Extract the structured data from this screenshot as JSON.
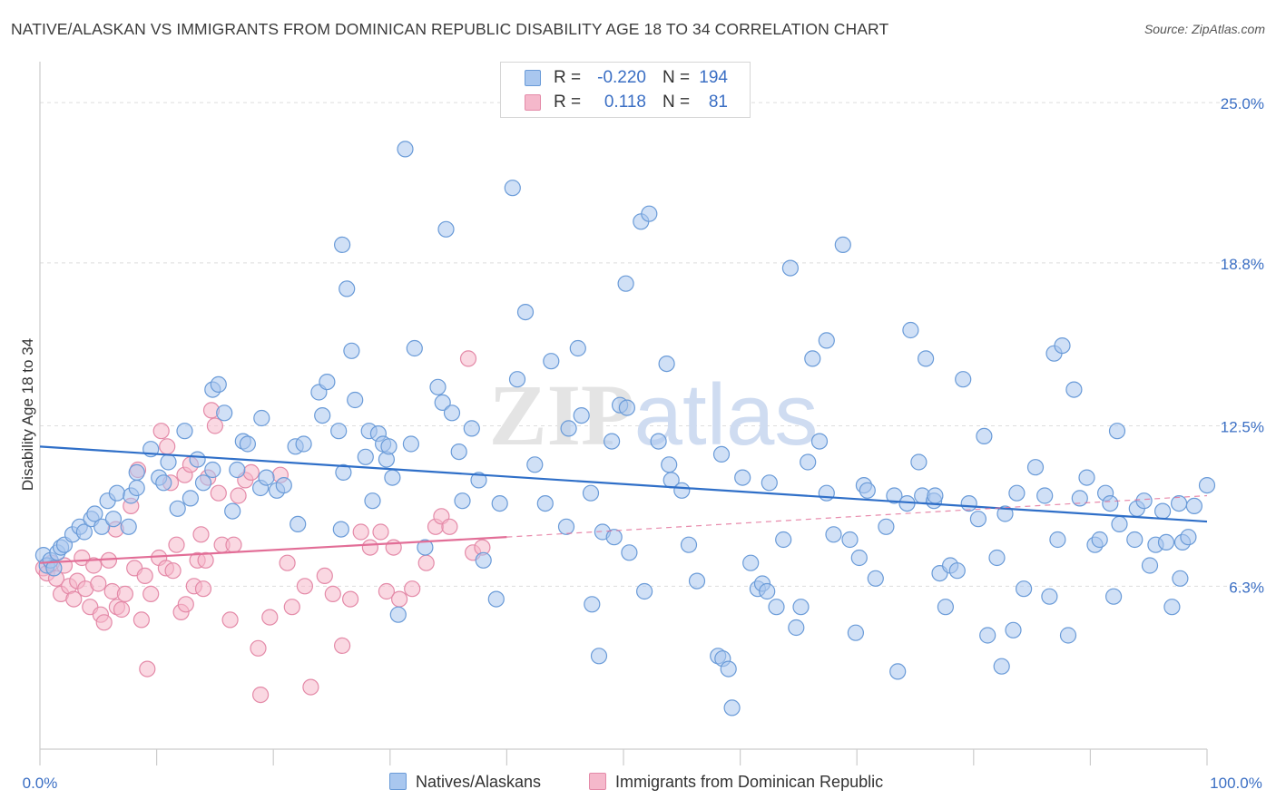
{
  "title": "NATIVE/ALASKAN VS IMMIGRANTS FROM DOMINICAN REPUBLIC DISABILITY AGE 18 TO 34 CORRELATION CHART",
  "source": "Source: ZipAtlas.com",
  "watermark": "ZIPatlas",
  "colors": {
    "blue_fill": "#a9c7ef",
    "blue_stroke": "#6a9bd8",
    "blue_line": "#2f6fc8",
    "pink_fill": "#f5b8cb",
    "pink_stroke": "#e48aa8",
    "pink_line": "#e26e97",
    "tick_label": "#3b6fc4",
    "grid": "#dddddd"
  },
  "stats": [
    {
      "r_label": "R =",
      "r_value": "-0.220",
      "n_label": "N =",
      "n_value": "194"
    },
    {
      "r_label": "R =",
      "r_value": "0.118",
      "n_label": "N =",
      "n_value": "81"
    }
  ],
  "chart_data": {
    "type": "scatter",
    "ylabel": "Disability Age 18 to 34",
    "xlabel": "",
    "xlim": [
      0,
      100
    ],
    "ylim": [
      0,
      26.3
    ],
    "x_tick_labels": [
      "0.0%",
      "100.0%"
    ],
    "y_ticks": [
      6.3,
      12.5,
      18.8,
      25.0
    ],
    "y_tick_labels": [
      "6.3%",
      "12.5%",
      "18.8%",
      "25.0%"
    ],
    "grid": true,
    "legend_position": "bottom",
    "series": [
      {
        "name": "Natives/Alaskans",
        "color": "blue",
        "trend": {
          "x": [
            0,
            100
          ],
          "y": [
            11.7,
            8.8
          ],
          "style": "solid"
        },
        "points": [
          [
            0.3,
            7.5
          ],
          [
            0.6,
            7.1
          ],
          [
            0.9,
            7.3
          ],
          [
            1.2,
            7.0
          ],
          [
            1.5,
            7.6
          ],
          [
            1.8,
            7.8
          ],
          [
            2.1,
            7.9
          ],
          [
            2.8,
            8.3
          ],
          [
            3.4,
            8.6
          ],
          [
            3.8,
            8.4
          ],
          [
            4.4,
            8.9
          ],
          [
            4.7,
            9.1
          ],
          [
            5.3,
            8.6
          ],
          [
            5.8,
            9.6
          ],
          [
            6.3,
            8.9
          ],
          [
            6.6,
            9.9
          ],
          [
            7.6,
            8.6
          ],
          [
            7.8,
            9.8
          ],
          [
            8.3,
            10.1
          ],
          [
            8.3,
            10.7
          ],
          [
            9.5,
            11.6
          ],
          [
            10.2,
            10.5
          ],
          [
            10.6,
            10.3
          ],
          [
            11.0,
            11.1
          ],
          [
            11.8,
            9.3
          ],
          [
            12.4,
            12.3
          ],
          [
            12.9,
            9.7
          ],
          [
            13.5,
            11.2
          ],
          [
            14.0,
            10.3
          ],
          [
            14.8,
            10.8
          ],
          [
            14.8,
            13.9
          ],
          [
            15.3,
            14.1
          ],
          [
            15.8,
            13.0
          ],
          [
            16.5,
            9.2
          ],
          [
            16.9,
            10.8
          ],
          [
            17.4,
            11.9
          ],
          [
            17.8,
            11.8
          ],
          [
            18.9,
            10.1
          ],
          [
            19.0,
            12.8
          ],
          [
            19.4,
            10.5
          ],
          [
            20.3,
            10.0
          ],
          [
            20.9,
            10.2
          ],
          [
            21.9,
            11.7
          ],
          [
            22.1,
            8.7
          ],
          [
            22.6,
            11.8
          ],
          [
            23.9,
            13.8
          ],
          [
            24.2,
            12.9
          ],
          [
            24.6,
            14.2
          ],
          [
            25.6,
            12.3
          ],
          [
            25.8,
            8.5
          ],
          [
            26.0,
            10.7
          ],
          [
            25.9,
            19.5
          ],
          [
            26.3,
            17.8
          ],
          [
            26.7,
            15.4
          ],
          [
            27.0,
            13.5
          ],
          [
            27.9,
            11.3
          ],
          [
            28.2,
            12.3
          ],
          [
            28.5,
            9.6
          ],
          [
            29.0,
            12.2
          ],
          [
            29.4,
            11.8
          ],
          [
            29.7,
            11.2
          ],
          [
            29.9,
            11.7
          ],
          [
            30.2,
            10.5
          ],
          [
            30.7,
            5.2
          ],
          [
            31.3,
            23.2
          ],
          [
            31.8,
            11.8
          ],
          [
            32.1,
            15.5
          ],
          [
            33.0,
            7.8
          ],
          [
            34.1,
            14.0
          ],
          [
            34.5,
            13.4
          ],
          [
            34.8,
            20.1
          ],
          [
            35.3,
            13.0
          ],
          [
            35.9,
            11.5
          ],
          [
            36.2,
            9.6
          ],
          [
            37.0,
            12.4
          ],
          [
            37.6,
            10.4
          ],
          [
            38.0,
            7.3
          ],
          [
            39.1,
            5.8
          ],
          [
            39.4,
            9.5
          ],
          [
            40.5,
            21.7
          ],
          [
            40.9,
            14.3
          ],
          [
            41.6,
            16.9
          ],
          [
            42.4,
            11.0
          ],
          [
            43.3,
            9.5
          ],
          [
            43.8,
            15.0
          ],
          [
            45.1,
            8.6
          ],
          [
            45.3,
            12.4
          ],
          [
            46.1,
            15.5
          ],
          [
            46.4,
            12.9
          ],
          [
            47.2,
            9.9
          ],
          [
            47.3,
            5.6
          ],
          [
            47.9,
            3.6
          ],
          [
            48.2,
            8.4
          ],
          [
            49.0,
            11.9
          ],
          [
            49.2,
            8.2
          ],
          [
            49.7,
            13.3
          ],
          [
            50.3,
            13.2
          ],
          [
            50.2,
            18.0
          ],
          [
            50.5,
            7.6
          ],
          [
            51.8,
            6.1
          ],
          [
            51.5,
            20.4
          ],
          [
            52.2,
            20.7
          ],
          [
            53.0,
            11.9
          ],
          [
            53.9,
            11.0
          ],
          [
            53.7,
            14.9
          ],
          [
            54.1,
            10.4
          ],
          [
            55.0,
            10.0
          ],
          [
            55.6,
            7.9
          ],
          [
            56.3,
            6.5
          ],
          [
            58.1,
            3.6
          ],
          [
            58.4,
            11.4
          ],
          [
            58.5,
            3.5
          ],
          [
            59.0,
            3.1
          ],
          [
            59.3,
            1.6
          ],
          [
            60.2,
            10.5
          ],
          [
            60.9,
            7.2
          ],
          [
            61.5,
            6.2
          ],
          [
            61.9,
            6.4
          ],
          [
            62.3,
            6.1
          ],
          [
            62.5,
            10.3
          ],
          [
            63.1,
            5.5
          ],
          [
            63.7,
            8.1
          ],
          [
            64.3,
            18.6
          ],
          [
            64.8,
            4.7
          ],
          [
            65.2,
            5.5
          ],
          [
            65.8,
            11.1
          ],
          [
            66.2,
            15.1
          ],
          [
            66.8,
            11.9
          ],
          [
            67.4,
            15.8
          ],
          [
            67.4,
            9.9
          ],
          [
            68.0,
            8.3
          ],
          [
            68.8,
            19.5
          ],
          [
            69.4,
            8.1
          ],
          [
            69.9,
            4.5
          ],
          [
            70.2,
            7.4
          ],
          [
            70.6,
            10.2
          ],
          [
            70.9,
            10.0
          ],
          [
            71.6,
            6.6
          ],
          [
            72.5,
            8.6
          ],
          [
            73.2,
            9.8
          ],
          [
            73.5,
            3.0
          ],
          [
            74.3,
            9.5
          ],
          [
            74.6,
            16.2
          ],
          [
            75.3,
            11.1
          ],
          [
            75.6,
            9.8
          ],
          [
            75.9,
            15.1
          ],
          [
            76.6,
            9.6
          ],
          [
            76.7,
            9.8
          ],
          [
            77.1,
            6.8
          ],
          [
            77.6,
            5.5
          ],
          [
            78.0,
            7.1
          ],
          [
            78.6,
            6.9
          ],
          [
            79.1,
            14.3
          ],
          [
            79.6,
            9.5
          ],
          [
            80.4,
            8.9
          ],
          [
            80.9,
            12.1
          ],
          [
            81.2,
            4.4
          ],
          [
            82.0,
            7.4
          ],
          [
            82.4,
            3.2
          ],
          [
            82.7,
            9.1
          ],
          [
            83.4,
            4.6
          ],
          [
            83.7,
            9.9
          ],
          [
            84.3,
            6.2
          ],
          [
            85.3,
            10.9
          ],
          [
            86.1,
            9.8
          ],
          [
            86.5,
            5.9
          ],
          [
            86.9,
            15.3
          ],
          [
            87.2,
            8.1
          ],
          [
            87.6,
            15.6
          ],
          [
            88.1,
            4.4
          ],
          [
            88.6,
            13.9
          ],
          [
            89.1,
            9.7
          ],
          [
            89.7,
            10.5
          ],
          [
            90.4,
            7.9
          ],
          [
            90.8,
            8.1
          ],
          [
            91.3,
            9.9
          ],
          [
            91.7,
            9.5
          ],
          [
            92.0,
            5.9
          ],
          [
            92.3,
            12.3
          ],
          [
            92.5,
            8.7
          ],
          [
            93.8,
            8.1
          ],
          [
            94.0,
            9.3
          ],
          [
            94.6,
            9.6
          ],
          [
            95.1,
            7.1
          ],
          [
            95.6,
            7.9
          ],
          [
            96.2,
            9.2
          ],
          [
            96.5,
            8.0
          ],
          [
            97.0,
            5.5
          ],
          [
            97.6,
            9.5
          ],
          [
            97.9,
            8.0
          ],
          [
            97.7,
            6.6
          ],
          [
            98.4,
            8.2
          ],
          [
            98.9,
            9.4
          ],
          [
            100.0,
            10.2
          ]
        ]
      },
      {
        "name": "Immigrants from Dominican Republic",
        "color": "pink",
        "trend": {
          "x": [
            0,
            40
          ],
          "y": [
            7.2,
            8.2
          ],
          "style": "solid",
          "extension": {
            "x": [
              40,
              100
            ],
            "y": [
              8.2,
              9.8
            ],
            "style": "dashed"
          }
        },
        "points": [
          [
            0.3,
            7.0
          ],
          [
            0.6,
            6.8
          ],
          [
            1.0,
            7.2
          ],
          [
            1.4,
            6.6
          ],
          [
            1.8,
            6.0
          ],
          [
            2.1,
            7.1
          ],
          [
            2.5,
            6.3
          ],
          [
            2.9,
            5.8
          ],
          [
            3.2,
            6.5
          ],
          [
            3.6,
            7.4
          ],
          [
            3.9,
            6.2
          ],
          [
            4.3,
            5.5
          ],
          [
            4.6,
            7.1
          ],
          [
            5.0,
            6.4
          ],
          [
            5.2,
            5.2
          ],
          [
            5.5,
            4.9
          ],
          [
            5.9,
            7.3
          ],
          [
            6.2,
            6.1
          ],
          [
            6.5,
            8.5
          ],
          [
            6.6,
            5.5
          ],
          [
            7.0,
            5.4
          ],
          [
            7.3,
            6.0
          ],
          [
            7.8,
            9.4
          ],
          [
            8.1,
            7.0
          ],
          [
            8.4,
            10.8
          ],
          [
            8.7,
            5.0
          ],
          [
            9.0,
            6.7
          ],
          [
            9.2,
            3.1
          ],
          [
            9.5,
            6.0
          ],
          [
            10.2,
            7.4
          ],
          [
            10.4,
            12.3
          ],
          [
            10.8,
            7.0
          ],
          [
            10.9,
            11.7
          ],
          [
            11.2,
            10.3
          ],
          [
            11.4,
            6.9
          ],
          [
            11.7,
            7.9
          ],
          [
            12.1,
            5.3
          ],
          [
            12.4,
            10.6
          ],
          [
            12.5,
            5.6
          ],
          [
            12.9,
            11.0
          ],
          [
            13.2,
            6.3
          ],
          [
            13.5,
            7.3
          ],
          [
            13.8,
            8.3
          ],
          [
            14.0,
            6.2
          ],
          [
            14.2,
            7.3
          ],
          [
            14.4,
            10.5
          ],
          [
            14.7,
            13.1
          ],
          [
            15.0,
            12.5
          ],
          [
            15.3,
            9.9
          ],
          [
            15.6,
            7.9
          ],
          [
            16.3,
            5.0
          ],
          [
            16.6,
            7.9
          ],
          [
            17.0,
            9.8
          ],
          [
            17.6,
            10.4
          ],
          [
            18.1,
            10.7
          ],
          [
            18.7,
            3.9
          ],
          [
            18.9,
            2.1
          ],
          [
            19.7,
            5.1
          ],
          [
            20.6,
            10.6
          ],
          [
            21.2,
            7.2
          ],
          [
            21.6,
            5.5
          ],
          [
            22.7,
            6.3
          ],
          [
            23.2,
            2.4
          ],
          [
            24.4,
            6.7
          ],
          [
            25.1,
            6.0
          ],
          [
            25.9,
            4.0
          ],
          [
            26.6,
            5.8
          ],
          [
            27.5,
            8.4
          ],
          [
            28.3,
            7.8
          ],
          [
            29.2,
            8.4
          ],
          [
            29.7,
            6.1
          ],
          [
            30.3,
            7.8
          ],
          [
            30.8,
            5.8
          ],
          [
            31.9,
            6.2
          ],
          [
            33.1,
            7.2
          ],
          [
            33.9,
            8.6
          ],
          [
            34.4,
            9.0
          ],
          [
            35.1,
            8.6
          ],
          [
            36.7,
            15.1
          ],
          [
            37.1,
            7.6
          ],
          [
            37.9,
            7.8
          ]
        ]
      }
    ]
  },
  "legend": [
    "Natives/Alaskans",
    "Immigrants from Dominican Republic"
  ]
}
